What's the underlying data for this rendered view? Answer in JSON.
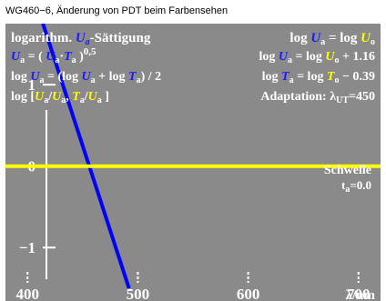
{
  "header": {
    "title": "WG460−6, Änderung von PDT beim Farbensehen"
  },
  "formulas": {
    "title_a": "logarithm. ",
    "title_U": "U",
    "title_sub": "a",
    "title_b": "-Sättigung",
    "line2": "= ( ",
    "line2_dot": "·",
    "line2_exp": "0,5",
    "line3_a": "log ",
    "line3_b": " = (log ",
    "line3_c": " + log ",
    "line3_d": ") / 2",
    "line4_a": "log [",
    "line4_b": ", ",
    "line4_c": " ]",
    "sym_U": "U",
    "sym_T": "T",
    "sub_a": "a",
    "sub_o": "o",
    "r1_a": "log ",
    "r1_b": " = log ",
    "r2_a": "log ",
    "r2_b": " = log ",
    "r2_c": " + 1.16",
    "r3_a": "log ",
    "r3_b": " = log ",
    "r3_c": " − 0.39",
    "adapt": "Adaptation: λ",
    "adapt_sub": "UT",
    "adapt_val": "=450"
  },
  "annotation": {
    "line1": "Schwelle",
    "line2_a": "t",
    "line2_sub": "a",
    "line2_b": "=0.0"
  },
  "chart_data": {
    "type": "line",
    "x_ticks": [
      400,
      500,
      600,
      700
    ],
    "x_tick_labels": [
      "400",
      "500",
      "600",
      "700"
    ],
    "xlabel": "λ/nm",
    "xlim": [
      380,
      720
    ],
    "y_ticks": [
      -1,
      0,
      1
    ],
    "y_tick_labels": [
      "−1",
      "0",
      "1"
    ],
    "ylim": [
      -1.5,
      1.75
    ],
    "series": [
      {
        "x": [
          414,
          492
        ],
        "y": [
          1.75,
          -1.5
        ],
        "color": "#0000ff"
      },
      {
        "x": [
          380,
          720
        ],
        "y": [
          0,
          0
        ],
        "color": "#ffff00"
      }
    ],
    "colors": {
      "background": "#8a8a8a",
      "grid": "#ffffff"
    }
  }
}
